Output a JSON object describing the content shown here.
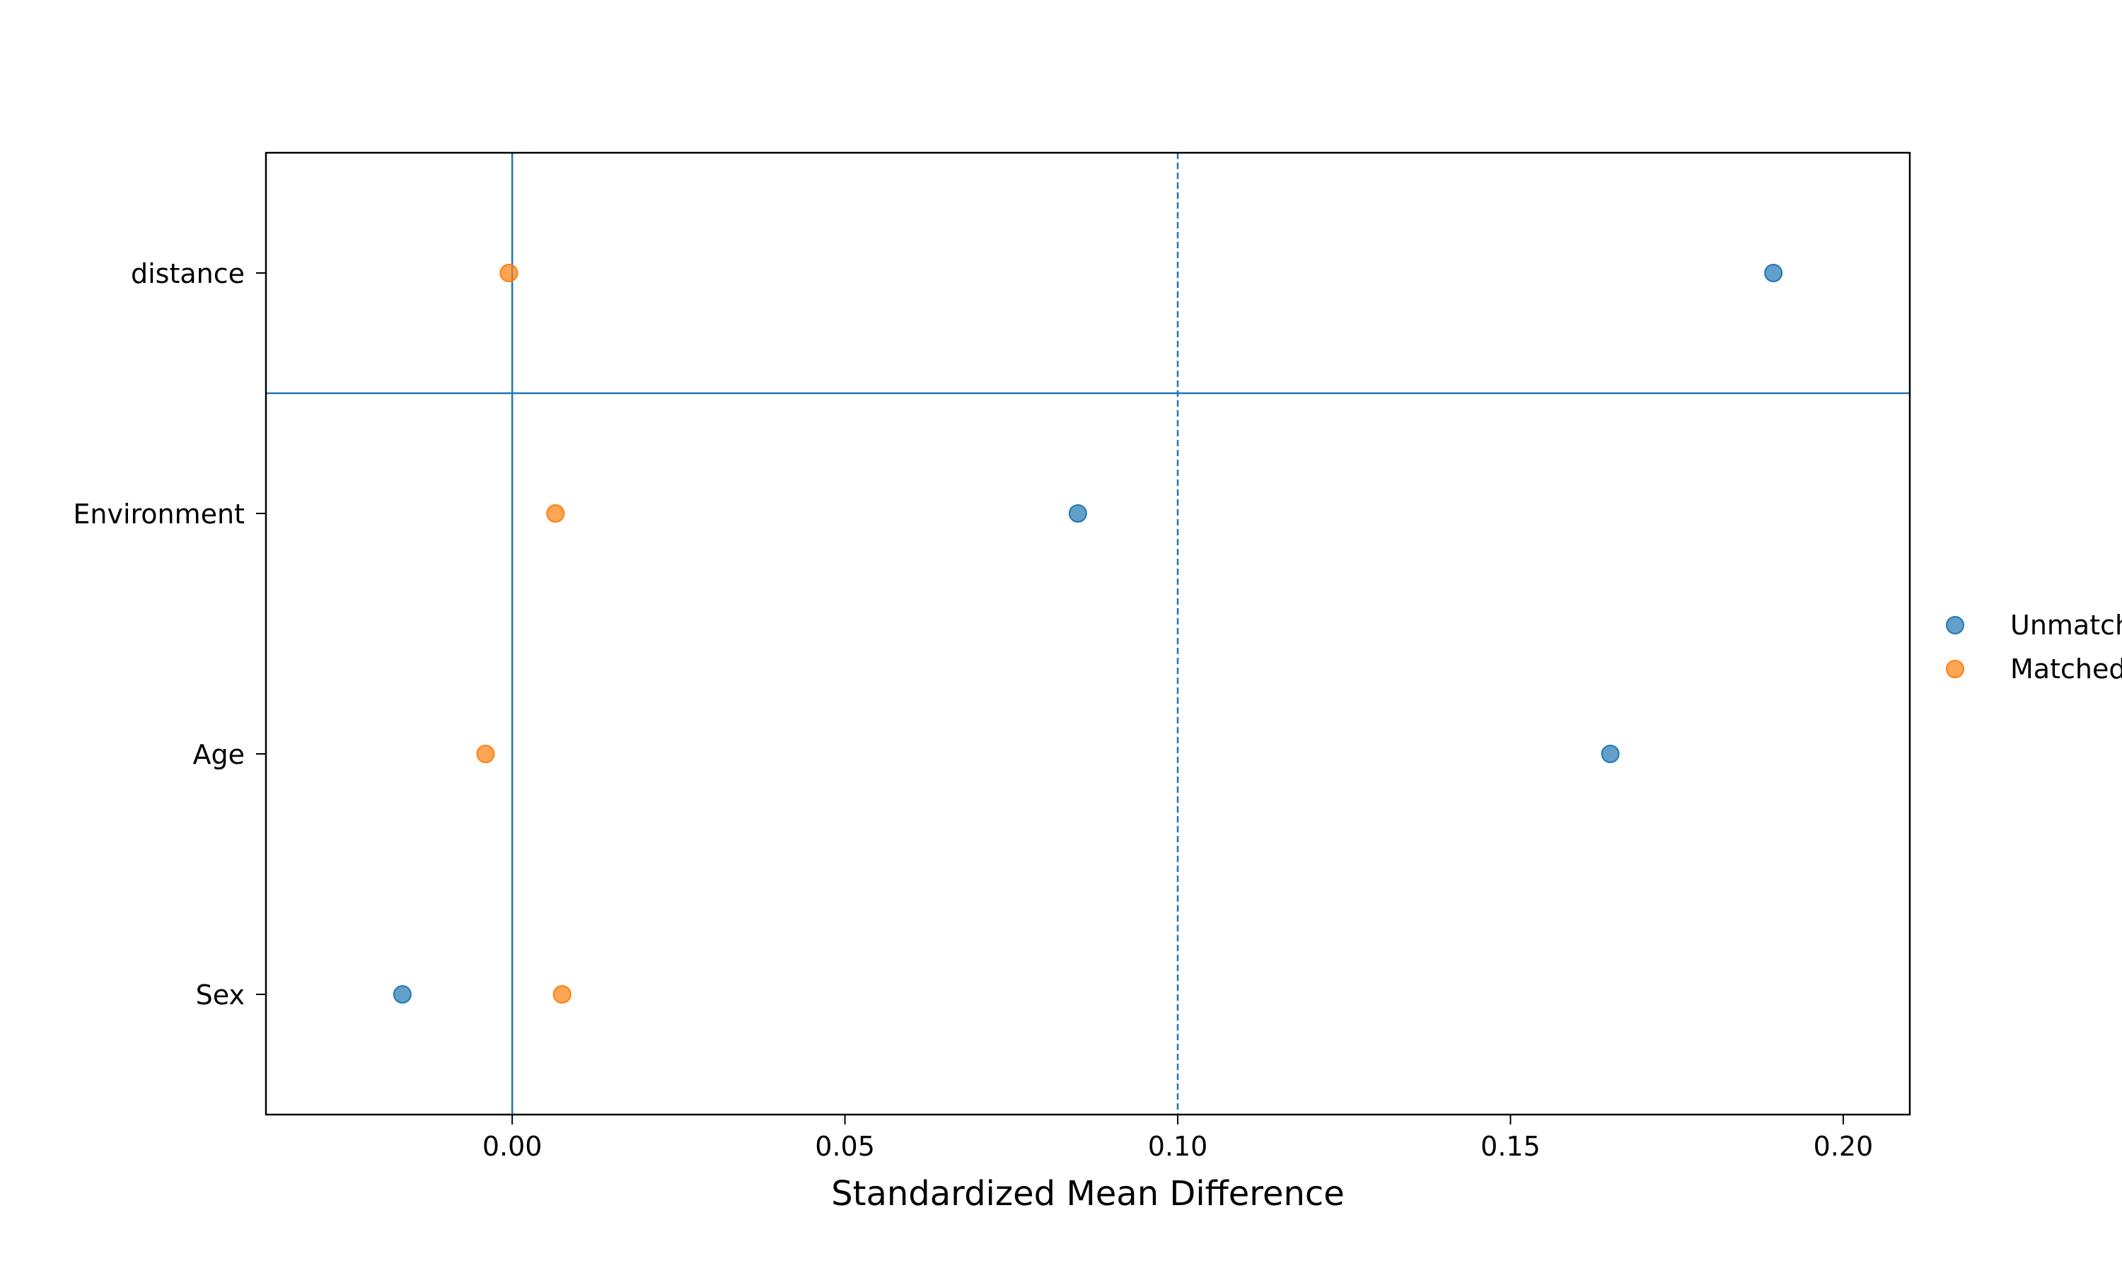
{
  "chart_data": {
    "type": "scatter",
    "title": "",
    "xlabel": "Standardized Mean Difference",
    "ylabel": "",
    "xlim": [
      -0.037,
      0.21
    ],
    "categories": [
      "Sex",
      "Age",
      "Environment",
      "distance"
    ],
    "xticks": [
      0.0,
      0.05,
      0.1,
      0.15,
      0.2
    ],
    "xtick_labels": [
      "0.00",
      "0.05",
      "0.10",
      "0.15",
      "0.20"
    ],
    "series": [
      {
        "name": "Unmatched",
        "color": "#1f77b4",
        "values": [
          -0.0165,
          0.165,
          0.085,
          0.1895
        ]
      },
      {
        "name": "Matched",
        "color": "#ff7f0e",
        "values": [
          0.0075,
          -0.004,
          0.0065,
          -0.0005
        ]
      }
    ],
    "reference_lines": {
      "zero_line": 0.0,
      "threshold_dashed": 0.1,
      "horizontal_separator_between": [
        "Environment",
        "distance"
      ]
    },
    "grid": false,
    "legend_position": "right, clipped by page edge"
  }
}
